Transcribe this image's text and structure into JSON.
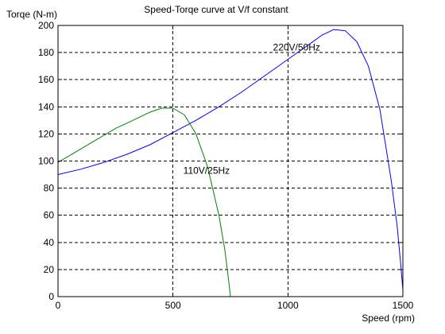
{
  "chart_data": {
    "type": "line",
    "title": "Speed-Torqe curve at V/f constant",
    "xlabel": "Speed (rpm)",
    "ylabel": "Torqe (N-m)",
    "xlim": [
      0,
      1500
    ],
    "ylim": [
      0,
      200
    ],
    "x_ticks": [
      0,
      500,
      1000,
      1500
    ],
    "y_ticks": [
      0,
      20,
      40,
      60,
      80,
      100,
      120,
      140,
      160,
      180,
      200
    ],
    "grid": "dashed",
    "legend": "none",
    "series": [
      {
        "name": "220V/50Hz",
        "color": "#0000ff",
        "x": [
          0,
          100,
          200,
          300,
          400,
          500,
          600,
          700,
          800,
          900,
          1000,
          1050,
          1100,
          1150,
          1200,
          1250,
          1300,
          1350,
          1400,
          1450,
          1475,
          1490,
          1500
        ],
        "y": [
          90,
          94,
          99,
          105,
          112,
          121,
          130,
          140,
          151,
          163,
          175,
          181,
          187,
          193,
          197,
          196,
          188,
          170,
          138,
          85,
          52,
          25,
          5
        ]
      },
      {
        "name": "110V/25Hz",
        "color": "#008000",
        "x": [
          0,
          50,
          100,
          150,
          200,
          250,
          300,
          350,
          400,
          450,
          500,
          550,
          600,
          650,
          700,
          725,
          740,
          750
        ],
        "y": [
          99,
          104,
          109,
          114,
          119,
          124,
          128,
          132,
          136,
          139,
          139,
          134,
          120,
          96,
          60,
          35,
          15,
          0
        ]
      }
    ],
    "annotations": [
      {
        "text": "220V/50Hz",
        "x": 935,
        "y": 184
      },
      {
        "text": "110V/25Hz",
        "x": 545,
        "y": 93
      }
    ]
  }
}
